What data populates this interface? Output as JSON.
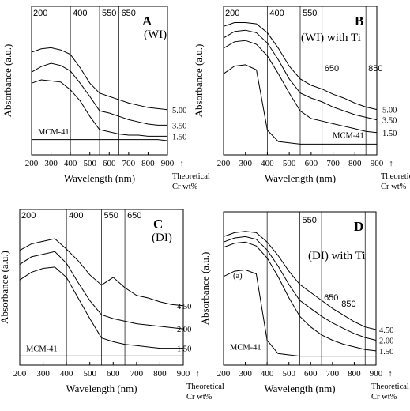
{
  "chart_data": [
    {
      "type": "line",
      "panel": "A",
      "title": "A",
      "subtitle": "(WI)",
      "xlabel": "Wavelength (nm)",
      "ylabel": "Absorbance (a.u.)",
      "xlim": [
        200,
        900
      ],
      "x_ticks": [
        "200",
        "300",
        "400",
        "500",
        "600",
        "700",
        "800",
        "900"
      ],
      "reference_lines": [
        400,
        550,
        650
      ],
      "reference_labels": [
        "200",
        "400",
        "550",
        "650"
      ],
      "footnote": [
        "Theoretical",
        "Cr wt%"
      ],
      "arrow": "↑",
      "x": [
        200,
        250,
        300,
        350,
        400,
        450,
        500,
        550,
        600,
        650,
        700,
        750,
        800,
        850,
        900
      ],
      "series": [
        {
          "label": "5.00",
          "y": [
            0.8,
            0.83,
            0.84,
            0.82,
            0.78,
            0.66,
            0.52,
            0.43,
            0.4,
            0.37,
            0.34,
            0.32,
            0.3,
            0.29,
            0.28
          ]
        },
        {
          "label": "3.50",
          "y": [
            0.62,
            0.67,
            0.7,
            0.68,
            0.63,
            0.52,
            0.4,
            0.27,
            0.25,
            0.22,
            0.19,
            0.17,
            0.15,
            0.14,
            0.14
          ]
        },
        {
          "label": "1.50",
          "y": [
            0.52,
            0.55,
            0.54,
            0.53,
            0.46,
            0.36,
            0.22,
            0.1,
            0.08,
            0.06,
            0.05,
            0.05,
            0.04,
            0.04,
            0.04
          ]
        },
        {
          "label": "MCM-41",
          "y": [
            0.01,
            0.01,
            0.01,
            0.01,
            0.01,
            0.01,
            0.01,
            0.01,
            0.01,
            0.01,
            0.01,
            0.01,
            0.01,
            0.01,
            0.0
          ]
        }
      ]
    },
    {
      "type": "line",
      "panel": "B",
      "title": "B",
      "subtitle": "(WI) with Ti",
      "xlabel": "Wavelength (nm)",
      "ylabel": "Absorbance (a.u.)",
      "xlim": [
        200,
        900
      ],
      "x_ticks": [
        "200",
        "300",
        "400",
        "500",
        "600",
        "700",
        "800",
        "900"
      ],
      "reference_lines": [
        400,
        550,
        650,
        850
      ],
      "reference_labels": [
        "200",
        "400",
        "550",
        "650",
        "850"
      ],
      "footnote": [
        "Theoretical",
        "Cr wt%"
      ],
      "arrow": "↑",
      "x": [
        200,
        250,
        300,
        350,
        400,
        450,
        500,
        550,
        600,
        650,
        700,
        750,
        800,
        850,
        900
      ],
      "series": [
        {
          "label": "5.00",
          "y": [
            0.93,
            0.96,
            0.96,
            0.95,
            0.88,
            0.76,
            0.62,
            0.52,
            0.47,
            0.44,
            0.4,
            0.37,
            0.33,
            0.3,
            0.28
          ]
        },
        {
          "label": "3.50",
          "y": [
            0.84,
            0.89,
            0.9,
            0.88,
            0.8,
            0.67,
            0.52,
            0.41,
            0.37,
            0.34,
            0.3,
            0.27,
            0.24,
            0.22,
            0.2
          ]
        },
        {
          "label": "1.50",
          "y": [
            0.76,
            0.81,
            0.82,
            0.79,
            0.7,
            0.56,
            0.41,
            0.27,
            0.21,
            0.19,
            0.17,
            0.15,
            0.13,
            0.11,
            0.1
          ]
        },
        {
          "label": "MCM-41",
          "y": [
            0.56,
            0.62,
            0.63,
            0.59,
            0.12,
            0.03,
            0.02,
            0.01,
            0.01,
            0.01,
            0.01,
            0.01,
            0.01,
            0.01,
            0.01
          ]
        }
      ]
    },
    {
      "type": "line",
      "panel": "C",
      "title": "C",
      "subtitle": "(DI)",
      "xlabel": "Wavelength (nm)",
      "ylabel": "Absorbance (a.u.)",
      "xlim": [
        200,
        900
      ],
      "x_ticks": [
        "200",
        "300",
        "400",
        "500",
        "600",
        "700",
        "800",
        "900"
      ],
      "reference_lines": [
        400,
        550,
        650
      ],
      "reference_labels": [
        "200",
        "400",
        "550",
        "650"
      ],
      "footnote": [
        "Theoretical",
        "Cr wt%"
      ],
      "arrow": "↑",
      "x": [
        200,
        250,
        300,
        350,
        400,
        450,
        500,
        550,
        600,
        650,
        700,
        750,
        800,
        850,
        900
      ],
      "series": [
        {
          "label": "4.50",
          "y": [
            0.83,
            0.88,
            0.9,
            0.92,
            0.84,
            0.75,
            0.64,
            0.56,
            0.62,
            0.54,
            0.48,
            0.46,
            0.43,
            0.41,
            0.4
          ]
        },
        {
          "label": "2.00",
          "y": [
            0.72,
            0.78,
            0.8,
            0.82,
            0.73,
            0.58,
            0.44,
            0.33,
            0.3,
            0.28,
            0.26,
            0.25,
            0.24,
            0.23,
            0.22
          ]
        },
        {
          "label": "1.50",
          "y": [
            0.6,
            0.66,
            0.69,
            0.7,
            0.62,
            0.46,
            0.3,
            0.15,
            0.12,
            0.1,
            0.09,
            0.08,
            0.07,
            0.07,
            0.07
          ]
        },
        {
          "label": "MCM-41",
          "y": [
            0.01,
            0.01,
            0.01,
            0.01,
            0.01,
            0.01,
            0.01,
            0.01,
            0.01,
            0.01,
            0.01,
            0.01,
            0.01,
            0.01,
            0.01
          ]
        }
      ]
    },
    {
      "type": "line",
      "panel": "D",
      "title": "D",
      "subtitle": "(DI) with Ti",
      "note": "(a)",
      "xlabel": "Wavelength (nm)",
      "ylabel": "Absorbance (a.u.)",
      "xlim": [
        200,
        900
      ],
      "x_ticks": [
        "200",
        "300",
        "400",
        "500",
        "600",
        "700",
        "800",
        "900"
      ],
      "reference_lines": [
        400,
        550,
        650,
        850
      ],
      "reference_labels": [
        "550",
        "650",
        "850"
      ],
      "footnote": [
        "Theoretical",
        "Cr wt%"
      ],
      "arrow": "↑",
      "x": [
        200,
        250,
        300,
        350,
        400,
        450,
        500,
        550,
        600,
        650,
        700,
        750,
        800,
        850,
        900
      ],
      "series": [
        {
          "label": "4.50",
          "y": [
            0.92,
            0.95,
            0.96,
            0.95,
            0.88,
            0.78,
            0.66,
            0.56,
            0.5,
            0.44,
            0.38,
            0.33,
            0.28,
            0.24,
            0.22
          ]
        },
        {
          "label": "2.00",
          "y": [
            0.88,
            0.91,
            0.92,
            0.9,
            0.82,
            0.7,
            0.56,
            0.44,
            0.38,
            0.32,
            0.27,
            0.23,
            0.19,
            0.16,
            0.14
          ]
        },
        {
          "label": "1.50",
          "y": [
            0.84,
            0.87,
            0.88,
            0.85,
            0.76,
            0.62,
            0.46,
            0.32,
            0.24,
            0.18,
            0.14,
            0.11,
            0.09,
            0.07,
            0.06
          ]
        },
        {
          "label": "MCM-41",
          "y": [
            0.62,
            0.66,
            0.67,
            0.64,
            0.14,
            0.04,
            0.03,
            0.02,
            0.02,
            0.02,
            0.02,
            0.02,
            0.02,
            0.02,
            0.02
          ]
        }
      ]
    }
  ]
}
